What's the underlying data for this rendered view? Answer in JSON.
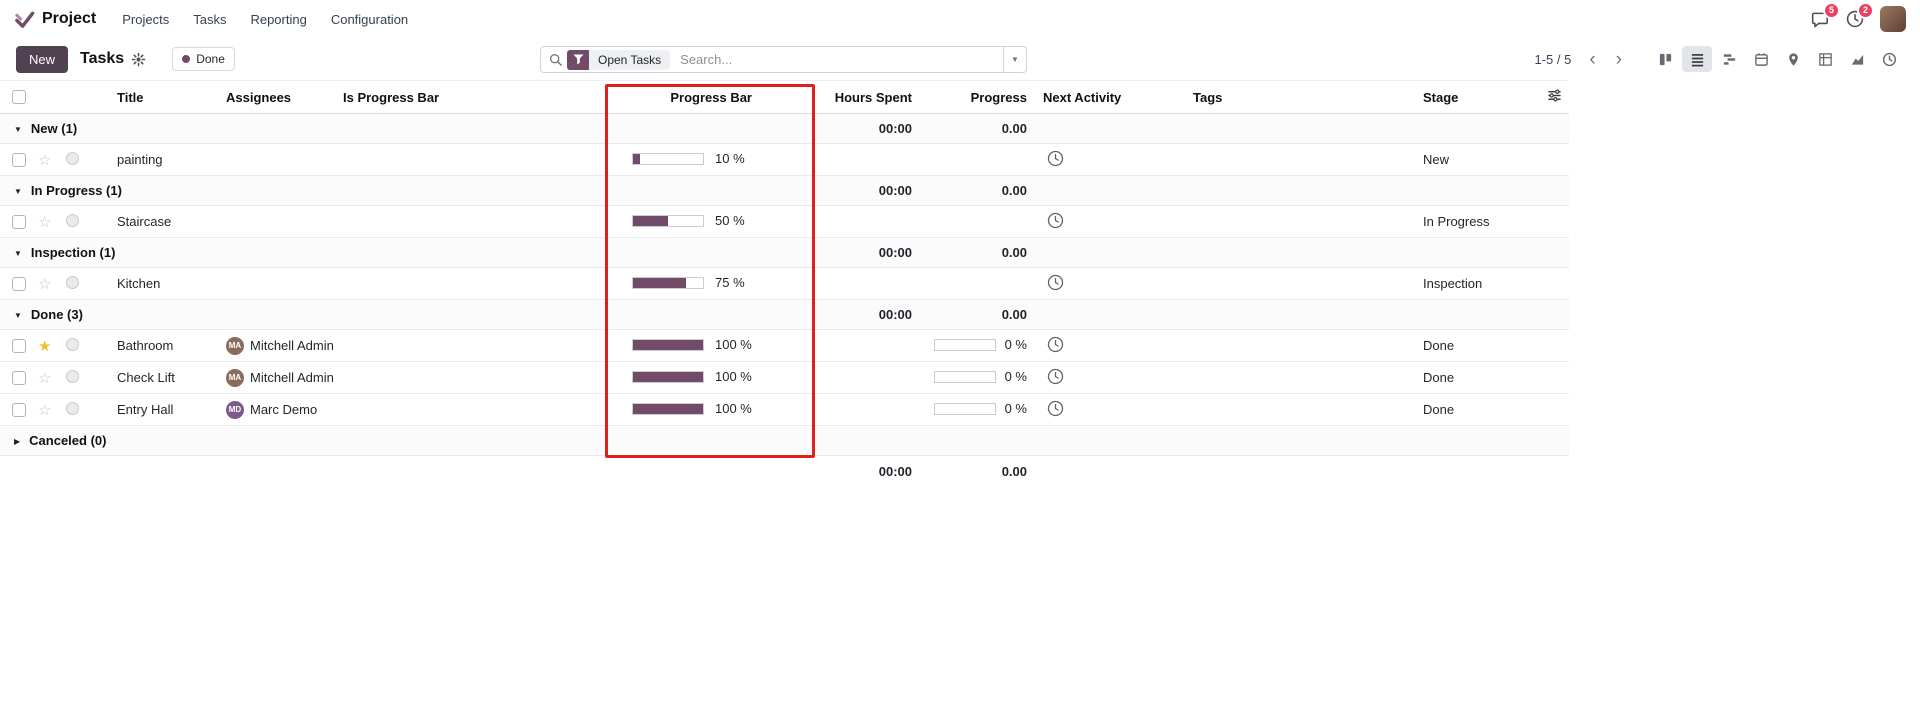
{
  "colors": {
    "accent": "#714B67",
    "annotation_red": "#e0201c",
    "star_gold": "#f0c02a",
    "badge_red": "#e7425f"
  },
  "nav": {
    "app_name": "Project",
    "menus": [
      "Projects",
      "Tasks",
      "Reporting",
      "Configuration"
    ],
    "messages_badge": "5",
    "activities_badge": "2"
  },
  "control_panel": {
    "new_button": "New",
    "title": "Tasks",
    "stage_pill": "Done",
    "search": {
      "facet": "Open Tasks",
      "placeholder": "Search..."
    },
    "pager": "1-5 / 5"
  },
  "table": {
    "columns": {
      "title": "Title",
      "assignees": "Assignees",
      "is_progress_bar": "Is Progress Bar",
      "progress_bar": "Progress Bar",
      "hours_spent": "Hours Spent",
      "progress": "Progress",
      "next_activity": "Next Activity",
      "tags": "Tags",
      "stage": "Stage"
    },
    "groups": [
      {
        "label": "New (1)",
        "expanded": true,
        "hours": "00:00",
        "progress": "0.00",
        "rows": [
          {
            "title": "painting",
            "assignees": [],
            "progress_pct": 10,
            "progress_label": "10 %",
            "hours_bar": null,
            "stage": "New",
            "starred": false
          }
        ]
      },
      {
        "label": "In Progress (1)",
        "expanded": true,
        "hours": "00:00",
        "progress": "0.00",
        "rows": [
          {
            "title": "Staircase",
            "assignees": [],
            "progress_pct": 50,
            "progress_label": "50 %",
            "hours_bar": null,
            "stage": "In Progress",
            "starred": false
          }
        ]
      },
      {
        "label": "Inspection (1)",
        "expanded": true,
        "hours": "00:00",
        "progress": "0.00",
        "rows": [
          {
            "title": "Kitchen",
            "assignees": [],
            "progress_pct": 75,
            "progress_label": "75 %",
            "hours_bar": null,
            "stage": "Inspection",
            "starred": false
          }
        ]
      },
      {
        "label": "Done (3)",
        "expanded": true,
        "hours": "00:00",
        "progress": "0.00",
        "rows": [
          {
            "title": "Bathroom",
            "assignees": [
              {
                "name": "Mitchell Admin",
                "initials": "MA",
                "color": "#8a6d5c"
              }
            ],
            "progress_pct": 100,
            "progress_label": "100 %",
            "hours_bar": {
              "pct": 0,
              "label": "0 %"
            },
            "stage": "Done",
            "starred": true
          },
          {
            "title": "Check Lift",
            "assignees": [
              {
                "name": "Mitchell Admin",
                "initials": "MA",
                "color": "#8a6d5c"
              }
            ],
            "progress_pct": 100,
            "progress_label": "100 %",
            "hours_bar": {
              "pct": 0,
              "label": "0 %"
            },
            "stage": "Done",
            "starred": false
          },
          {
            "title": "Entry Hall",
            "assignees": [
              {
                "name": "Marc Demo",
                "initials": "MD",
                "color": "#7d5a8a"
              }
            ],
            "progress_pct": 100,
            "progress_label": "100 %",
            "hours_bar": {
              "pct": 0,
              "label": "0 %"
            },
            "stage": "Done",
            "starred": false
          }
        ]
      },
      {
        "label": "Canceled (0)",
        "expanded": false,
        "hours": "",
        "progress": "",
        "rows": []
      }
    ],
    "footer": {
      "hours": "00:00",
      "progress": "0.00"
    }
  },
  "view_switcher": [
    "kanban",
    "list",
    "gantt",
    "calendar",
    "map",
    "pivot",
    "graph",
    "activity"
  ],
  "active_view": "list"
}
